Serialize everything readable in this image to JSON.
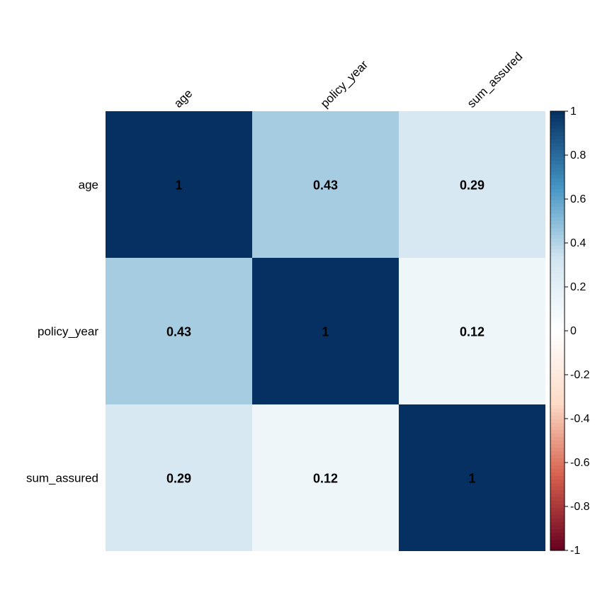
{
  "chart_data": {
    "type": "heatmap",
    "title": "",
    "variables": [
      "age",
      "policy_year",
      "sum_assured"
    ],
    "matrix": [
      [
        1,
        0.43,
        0.29
      ],
      [
        0.43,
        1,
        0.12
      ],
      [
        0.29,
        0.12,
        1
      ]
    ],
    "cell_labels": [
      [
        "1",
        "0.43",
        "0.29"
      ],
      [
        "0.43",
        "1",
        "0.12"
      ],
      [
        "0.29",
        "0.12",
        "1"
      ]
    ],
    "colorbar": {
      "range": [
        -1,
        1
      ],
      "ticks": [
        1,
        0.8,
        0.6,
        0.4,
        0.2,
        0,
        -0.2,
        -0.4,
        -0.6,
        -0.8,
        -1
      ],
      "tick_labels": [
        "1",
        "0.8",
        "0.6",
        "0.4",
        "0.2",
        "0",
        "-0.2",
        "-0.4",
        "-0.6",
        "-0.8",
        "-1"
      ],
      "placement": "right"
    },
    "colors": {
      "neg_strong": "#67001F",
      "neg_mid": "#D6604D",
      "neg_light": "#FDDBC7",
      "zero": "#FFFFFF",
      "pos_light": "#D1E5F0",
      "pos_mid": "#4393C3",
      "pos_strong": "#053061"
    }
  }
}
